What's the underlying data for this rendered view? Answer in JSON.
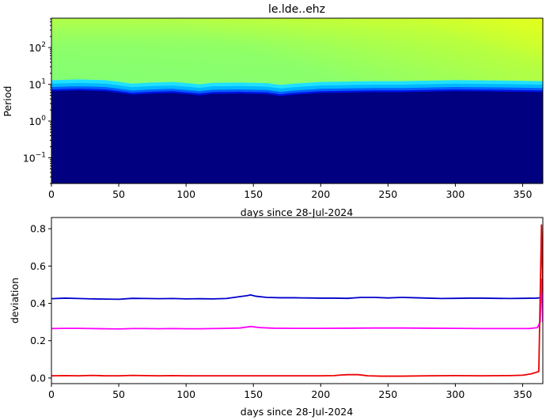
{
  "chart_data": [
    {
      "type": "heatmap",
      "title": "le.lde..ehz",
      "xlabel": "days since 28-Jul-2024",
      "ylabel": "Period",
      "xlim": [
        0,
        365
      ],
      "ylim": [
        0.02,
        630
      ],
      "yscale": "log",
      "colormap": "jet",
      "xticks": [
        0,
        50,
        100,
        150,
        200,
        250,
        300,
        350
      ],
      "yticks": [
        {
          "value": 0.1,
          "mantissa": "10",
          "exp": "−1"
        },
        {
          "value": 1,
          "mantissa": "10",
          "exp": "0"
        },
        {
          "value": 10,
          "mantissa": "10",
          "exp": "1"
        },
        {
          "value": 100,
          "mantissa": "10",
          "exp": "2"
        }
      ],
      "boundary_period": {
        "x": [
          0,
          20,
          40,
          60,
          75,
          90,
          110,
          120,
          140,
          160,
          170,
          180,
          200,
          215,
          225,
          240,
          260,
          280,
          300,
          320,
          340,
          365
        ],
        "y": [
          6.5,
          6.8,
          6.5,
          5.2,
          5.6,
          5.8,
          5.0,
          5.5,
          5.6,
          5.4,
          4.8,
          5.2,
          5.8,
          5.9,
          6.0,
          6.1,
          6.1,
          6.3,
          6.5,
          6.4,
          6.3,
          6.1
        ]
      }
    },
    {
      "type": "line",
      "xlabel": "days since 28-Jul-2024",
      "ylabel": "deviation",
      "xlim": [
        0,
        365
      ],
      "ylim": [
        -0.03,
        0.86
      ],
      "xticks": [
        0,
        50,
        100,
        150,
        200,
        250,
        300,
        350
      ],
      "yticks": [
        "0.0",
        "0.2",
        "0.4",
        "0.6",
        "0.8"
      ],
      "series": [
        {
          "color": "#0000cc",
          "x": [
            0,
            10,
            20,
            30,
            40,
            50,
            60,
            70,
            80,
            90,
            100,
            110,
            120,
            130,
            140,
            145,
            148,
            152,
            160,
            170,
            180,
            190,
            200,
            210,
            220,
            230,
            240,
            250,
            260,
            270,
            280,
            290,
            300,
            310,
            320,
            330,
            340,
            350,
            360,
            363
          ],
          "y": [
            0.425,
            0.428,
            0.426,
            0.424,
            0.423,
            0.422,
            0.427,
            0.426,
            0.425,
            0.426,
            0.424,
            0.425,
            0.424,
            0.426,
            0.436,
            0.441,
            0.445,
            0.438,
            0.432,
            0.43,
            0.43,
            0.429,
            0.428,
            0.428,
            0.427,
            0.432,
            0.432,
            0.429,
            0.432,
            0.43,
            0.428,
            0.426,
            0.427,
            0.428,
            0.428,
            0.427,
            0.426,
            0.427,
            0.428,
            0.43
          ]
        },
        {
          "color": "#ff00ff",
          "x": [
            0,
            10,
            20,
            30,
            40,
            50,
            60,
            70,
            80,
            90,
            100,
            110,
            120,
            130,
            140,
            148,
            155,
            165,
            180,
            200,
            220,
            240,
            260,
            280,
            300,
            320,
            340,
            355,
            361,
            363,
            364,
            365
          ],
          "y": [
            0.265,
            0.266,
            0.266,
            0.265,
            0.264,
            0.263,
            0.265,
            0.265,
            0.264,
            0.265,
            0.264,
            0.264,
            0.265,
            0.266,
            0.268,
            0.276,
            0.27,
            0.267,
            0.266,
            0.266,
            0.267,
            0.268,
            0.268,
            0.267,
            0.266,
            0.265,
            0.265,
            0.265,
            0.27,
            0.3,
            0.53,
            0.3
          ]
        },
        {
          "color": "#ee0000",
          "x": [
            0,
            10,
            20,
            30,
            40,
            50,
            60,
            70,
            80,
            90,
            100,
            110,
            120,
            140,
            160,
            180,
            200,
            210,
            215,
            220,
            228,
            235,
            245,
            260,
            280,
            300,
            320,
            340,
            350,
            356,
            360,
            362,
            364,
            365
          ],
          "y": [
            0.012,
            0.013,
            0.012,
            0.014,
            0.012,
            0.012,
            0.014,
            0.013,
            0.012,
            0.013,
            0.012,
            0.012,
            0.012,
            0.012,
            0.012,
            0.012,
            0.012,
            0.013,
            0.016,
            0.018,
            0.018,
            0.012,
            0.01,
            0.01,
            0.012,
            0.013,
            0.012,
            0.013,
            0.015,
            0.022,
            0.03,
            0.035,
            0.82,
            0.45
          ]
        }
      ]
    }
  ]
}
